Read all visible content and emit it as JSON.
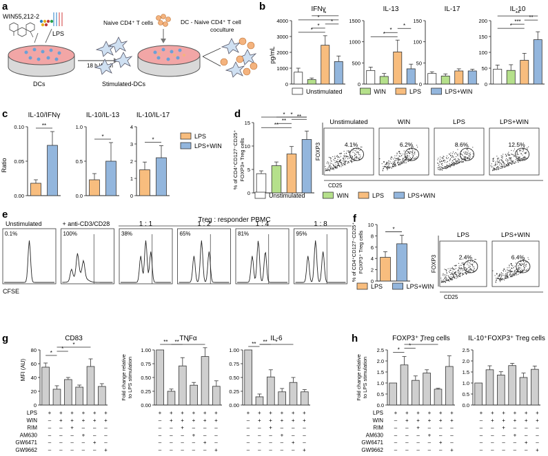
{
  "colors": {
    "unstimulated": "#ffffff",
    "win": "#b5e08b",
    "lps": "#f8bd7e",
    "lps_win": "#93b6dd",
    "gray_bar": "#cfcfcf",
    "stroke": "#333333"
  },
  "panel_labels": [
    "a",
    "b",
    "c",
    "d",
    "e",
    "f",
    "g",
    "h"
  ],
  "panel_a": {
    "win_label": "WIN55,212-2",
    "lps_label": "LPS",
    "dcs_label": "DCs",
    "wash_label": "18 h  Wash",
    "naive_label": "Naive CD4⁺ T cells",
    "stimulated_label": "Stimulated-DCs",
    "coculture_label_1": "DC - Naive CD4⁺ T cell",
    "coculture_label_2": "coculture"
  },
  "legend_4": [
    "Unstimulated",
    "WIN",
    "LPS",
    "LPS+WIN"
  ],
  "legend_2": [
    "LPS",
    "LPS+WIN"
  ],
  "chart_data": [
    {
      "id": "b-ifng",
      "type": "bar",
      "title": "IFNγ",
      "ylabel": "pg/mL",
      "ylim": [
        0,
        4000
      ],
      "yticks": [
        0,
        1000,
        2000,
        3000,
        4000
      ],
      "categories": [
        "Unstimulated",
        "WIN",
        "LPS",
        "LPS+WIN"
      ],
      "values": [
        750,
        280,
        2450,
        1420
      ],
      "errors": [
        250,
        100,
        600,
        350
      ],
      "significance": [
        "*",
        "*",
        "*",
        "*",
        "*"
      ]
    },
    {
      "id": "b-il13",
      "type": "bar",
      "title": "IL-13",
      "ylim": [
        0,
        1500
      ],
      "yticks": [
        0,
        500,
        1000,
        1500
      ],
      "categories": [
        "Unstimulated",
        "WIN",
        "LPS",
        "LPS+WIN"
      ],
      "values": [
        320,
        180,
        760,
        360
      ],
      "errors": [
        80,
        70,
        280,
        110
      ],
      "significance": [
        "*",
        "*",
        "*"
      ]
    },
    {
      "id": "b-il17",
      "type": "bar",
      "title": "IL-17",
      "ylim": [
        0,
        150
      ],
      "yticks": [
        0,
        50,
        100,
        150
      ],
      "categories": [
        "Unstimulated",
        "WIN",
        "LPS",
        "LPS+WIN"
      ],
      "values": [
        25,
        19,
        31,
        31
      ],
      "errors": [
        4,
        5,
        5,
        4
      ],
      "significance": []
    },
    {
      "id": "b-il10",
      "type": "bar",
      "title": "IL-10",
      "ylim": [
        0,
        200
      ],
      "yticks": [
        0,
        50,
        100,
        150,
        200
      ],
      "categories": [
        "Unstimulated",
        "WIN",
        "LPS",
        "LPS+WIN"
      ],
      "values": [
        47,
        43,
        75,
        140
      ],
      "errors": [
        13,
        18,
        22,
        25
      ],
      "significance": [
        "*",
        "***",
        "**",
        "**"
      ]
    },
    {
      "id": "c-ifng",
      "type": "bar",
      "title": "IL-10/IFNγ",
      "ylabel": "Ratio",
      "ylim": [
        0,
        0.1
      ],
      "yticks": [
        0,
        0.05,
        0.1
      ],
      "yticklabels": [
        "0.00",
        "0.05",
        "0.10"
      ],
      "categories": [
        "LPS",
        "LPS+WIN"
      ],
      "values": [
        0.018,
        0.073
      ],
      "errors": [
        0.005,
        0.02
      ],
      "significance": [
        "**"
      ]
    },
    {
      "id": "c-il13",
      "type": "bar",
      "title": "IL-10/IL-13",
      "ylim": [
        0,
        1
      ],
      "yticks": [
        0,
        0.5,
        1
      ],
      "yticklabels": [
        "0.0",
        "0.5",
        "1.0"
      ],
      "categories": [
        "LPS",
        "LPS+WIN"
      ],
      "values": [
        0.23,
        0.5
      ],
      "errors": [
        0.09,
        0.27
      ],
      "significance": [
        "*"
      ]
    },
    {
      "id": "c-il17",
      "type": "bar",
      "title": "IL-10/IL-17",
      "ylim": [
        0,
        4
      ],
      "yticks": [
        0,
        1,
        2,
        3,
        4
      ],
      "categories": [
        "LPS",
        "LPS+WIN"
      ],
      "values": [
        1.5,
        2.2
      ],
      "errors": [
        0.45,
        0.7
      ],
      "significance": [
        "*"
      ]
    },
    {
      "id": "d-treg",
      "type": "bar",
      "ylabel_1": "% of CD4⁺CD127⁻CD25⁺",
      "ylabel_2": "FOXP3+ Treg cells",
      "ylim": [
        0,
        15
      ],
      "yticks": [
        0,
        5,
        10,
        15
      ],
      "categories": [
        "Unstimulated",
        "WIN",
        "LPS",
        "LPS+WIN"
      ],
      "values": [
        4.1,
        5.8,
        8.3,
        11.4
      ],
      "errors": [
        0.6,
        0.8,
        1.6,
        1.8
      ],
      "significance": [
        "**",
        "**",
        "**",
        "*",
        "*"
      ]
    },
    {
      "id": "f-treg",
      "type": "bar",
      "ylabel_1": "% of CD4⁺CD127⁻CD25⁺",
      "ylabel_2": "FOXP3⁺ Treg cells",
      "ylim": [
        0,
        10
      ],
      "yticks": [
        0,
        2,
        4,
        6,
        8,
        10
      ],
      "categories": [
        "LPS",
        "LPS+WIN"
      ],
      "values": [
        4.2,
        6.6
      ],
      "errors": [
        1.0,
        1.5
      ],
      "significance": [
        "*"
      ]
    },
    {
      "id": "g-cd83",
      "type": "bar",
      "title": "CD83",
      "ylabel": "MFI (AU)",
      "ylim": [
        0,
        80
      ],
      "yticks": [
        0,
        20,
        40,
        60,
        80
      ],
      "values": [
        55,
        23,
        37,
        26,
        56,
        27
      ],
      "errors": [
        6,
        5,
        3,
        3,
        11,
        4
      ],
      "significance": [
        "*",
        "*",
        "*"
      ]
    },
    {
      "id": "g-tnfa",
      "type": "bar",
      "title": "TNFα",
      "ylabel_1": "Fold change relative",
      "ylabel_2": "to LPS stimulation",
      "ylim": [
        0,
        1
      ],
      "yticks": [
        0,
        0.25,
        0.5,
        0.75,
        1
      ],
      "yticklabels": [
        "0.00",
        "0.25",
        "0.50",
        "0.75",
        "1.00"
      ],
      "values": [
        1.0,
        0.25,
        0.71,
        0.36,
        0.88,
        0.34
      ],
      "errors": [
        0,
        0.04,
        0.15,
        0.05,
        0.16,
        0.1
      ],
      "significance": [
        "**",
        "**",
        "*"
      ]
    },
    {
      "id": "g-il6",
      "type": "bar",
      "title": "IL-6",
      "ylim": [
        0,
        1
      ],
      "yticks": [
        0,
        0.25,
        0.5,
        0.75,
        1
      ],
      "yticklabels": [
        "0.00",
        "0.25",
        "0.50",
        "0.75",
        "1.00"
      ],
      "values": [
        1.0,
        0.15,
        0.51,
        0.24,
        0.41,
        0.24
      ],
      "errors": [
        0,
        0.05,
        0.13,
        0.06,
        0.09,
        0.04
      ],
      "significance": [
        "**",
        "**",
        "*"
      ]
    },
    {
      "id": "h-foxp3",
      "type": "bar",
      "title": "FOXP3⁺ Treg cells",
      "ylabel_1": "Fold change relative",
      "ylabel_2": "to LPS stimulation",
      "ylim": [
        0,
        2.5
      ],
      "yticks": [
        0,
        0.5,
        1,
        1.5,
        2,
        2.5
      ],
      "yticklabels": [
        "0.0",
        "0.5",
        "1.0",
        "1.5",
        "2.0",
        "2.5"
      ],
      "values": [
        1.0,
        1.82,
        1.12,
        1.45,
        0.72,
        1.75
      ],
      "errors": [
        0,
        0.38,
        0.2,
        0.15,
        0.04,
        0.48
      ],
      "significance": [
        "*",
        "*",
        "*"
      ]
    },
    {
      "id": "h-il10",
      "type": "bar",
      "title": "IL-10⁺FOXP3⁺ Treg cells",
      "ylim": [
        0,
        2.5
      ],
      "yticks": [
        0,
        0.5,
        1,
        1.5,
        2,
        2.5
      ],
      "yticklabels": [
        "0.0",
        "0.5",
        "1.0",
        "1.5",
        "2.0",
        "2.5"
      ],
      "values": [
        1.0,
        1.6,
        1.36,
        1.79,
        1.25,
        1.62
      ],
      "errors": [
        0,
        0.18,
        0.15,
        0.1,
        0.2,
        0.15
      ],
      "significance": []
    }
  ],
  "treatment_table": {
    "rows": [
      {
        "label": "LPS",
        "marks": [
          "+",
          "+",
          "+",
          "+",
          "+",
          "+"
        ]
      },
      {
        "label": "WIN",
        "marks": [
          "–",
          "+",
          "+",
          "+",
          "+",
          "+"
        ]
      },
      {
        "label": "RIM",
        "marks": [
          "–",
          "–",
          "+",
          "–",
          "–",
          "–"
        ]
      },
      {
        "label": "AM630",
        "marks": [
          "–",
          "–",
          "–",
          "+",
          "–",
          "–"
        ]
      },
      {
        "label": "GW6471",
        "marks": [
          "–",
          "–",
          "–",
          "–",
          "+",
          "–"
        ]
      },
      {
        "label": "GW9662",
        "marks": [
          "–",
          "–",
          "–",
          "–",
          "–",
          "+"
        ]
      }
    ]
  },
  "flow_d": {
    "axis_y": "FOXP3",
    "axis_x": "CD25",
    "plots": [
      {
        "title": "Unstimulated",
        "percent": "4.1%"
      },
      {
        "title": "WIN",
        "percent": "6.2%"
      },
      {
        "title": "LPS",
        "percent": "8.6%"
      },
      {
        "title": "LPS+WIN",
        "percent": "12.5%"
      }
    ]
  },
  "flow_f": {
    "axis_y": "FOXP3",
    "axis_x": "CD25",
    "plots": [
      {
        "title": "LPS",
        "percent": "2.4%"
      },
      {
        "title": "LPS+WIN",
        "percent": "6.4%"
      }
    ]
  },
  "panel_e": {
    "header": "Treg : responder PBMC",
    "xlabel": "CFSE",
    "histograms": [
      {
        "title": "Unstimulated",
        "percent": "0.1%"
      },
      {
        "title": "+ anti-CD3/CD28",
        "percent": "100%"
      },
      {
        "title": "1 : 1",
        "percent": "38%"
      },
      {
        "title": "1 : 2",
        "percent": "65%"
      },
      {
        "title": "1 : 4",
        "percent": "81%"
      },
      {
        "title": "1 : 8",
        "percent": "95%"
      }
    ]
  }
}
